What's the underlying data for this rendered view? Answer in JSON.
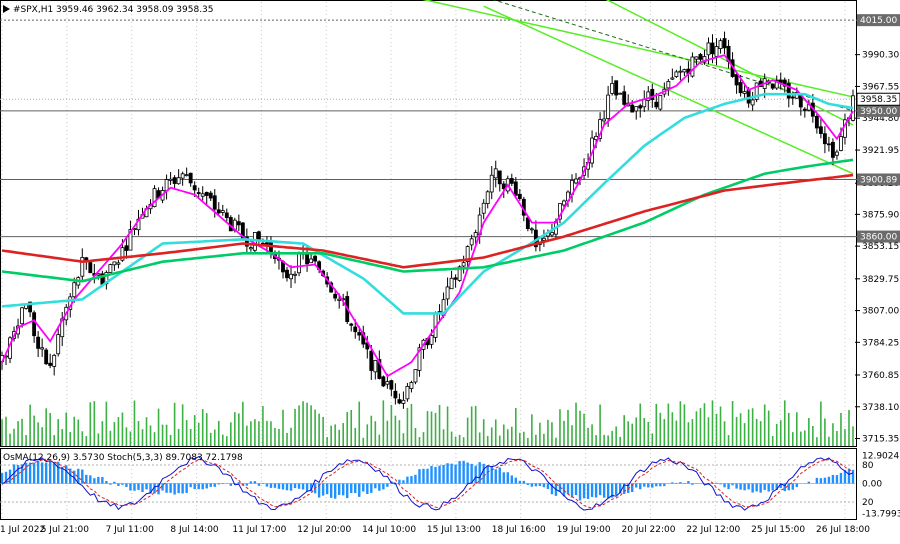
{
  "chart_data": [
    {
      "type": "candlestick",
      "title": "#SPX,H1  3959.46 3962.34 3958.09 3958.35",
      "x_ticks": [
        "1 Jul 2022",
        "5 Jul 21:00",
        "7 Jul 11:00",
        "8 Jul 14:00",
        "11 Jul 17:00",
        "12 Jul 20:00",
        "14 Jul 10:00",
        "15 Jul 13:00",
        "18 Jul 16:00",
        "19 Jul 19:00",
        "20 Jul 22:00",
        "22 Jul 12:00",
        "25 Jul 15:00",
        "26 Jul 18:00"
      ],
      "y_ticks": [
        3990.3,
        3967.55,
        3944.8,
        3921.95,
        3898.2,
        3875.9,
        3853.15,
        3829.75,
        3807.0,
        3784.25,
        3760.85,
        3738.1,
        3715.35
      ],
      "ylim": [
        3710,
        4028
      ],
      "levels": [
        {
          "label": "4015.00",
          "value": 4015.0,
          "style": "dotted"
        },
        {
          "label": "3950.00",
          "value": 3950.0,
          "style": "solid"
        },
        {
          "label": "3900.89",
          "value": 3900.89,
          "style": "solid"
        },
        {
          "label": "3860.00",
          "value": 3860.0,
          "style": "solid"
        }
      ],
      "current_price": {
        "label": "3958.35",
        "value": 3958.35
      },
      "ohlc_keypoints": [
        [
          0,
          3770
        ],
        [
          3,
          3795
        ],
        [
          6,
          3815
        ],
        [
          9,
          3780
        ],
        [
          12,
          3765
        ],
        [
          15,
          3800
        ],
        [
          20,
          3840
        ],
        [
          25,
          3830
        ],
        [
          30,
          3850
        ],
        [
          35,
          3880
        ],
        [
          40,
          3895
        ],
        [
          45,
          3905
        ],
        [
          50,
          3890
        ],
        [
          55,
          3875
        ],
        [
          60,
          3860
        ],
        [
          65,
          3855
        ],
        [
          68,
          3850
        ],
        [
          70,
          3830
        ],
        [
          75,
          3845
        ],
        [
          80,
          3835
        ],
        [
          85,
          3810
        ],
        [
          88,
          3790
        ],
        [
          92,
          3770
        ],
        [
          96,
          3752
        ],
        [
          100,
          3745
        ],
        [
          104,
          3775
        ],
        [
          108,
          3800
        ],
        [
          112,
          3825
        ],
        [
          116,
          3850
        ],
        [
          119,
          3875
        ],
        [
          122,
          3905
        ],
        [
          125,
          3900
        ],
        [
          128,
          3895
        ],
        [
          131,
          3870
        ],
        [
          133,
          3850
        ],
        [
          136,
          3860
        ],
        [
          140,
          3885
        ],
        [
          145,
          3910
        ],
        [
          148,
          3935
        ],
        [
          152,
          3965
        ],
        [
          156,
          3950
        ],
        [
          160,
          3960
        ],
        [
          164,
          3958
        ],
        [
          168,
          3975
        ],
        [
          172,
          3985
        ],
        [
          176,
          3995
        ],
        [
          180,
          3998
        ],
        [
          183,
          3970
        ],
        [
          186,
          3960
        ],
        [
          190,
          3975
        ],
        [
          194,
          3965
        ],
        [
          198,
          3960
        ],
        [
          202,
          3950
        ],
        [
          206,
          3925
        ],
        [
          208,
          3920
        ],
        [
          210,
          3940
        ],
        [
          212,
          3958
        ]
      ],
      "ma_series": [
        {
          "color": "#ff00ff",
          "period": "short",
          "keypoints": [
            [
              0,
              3770
            ],
            [
              4,
              3795
            ],
            [
              8,
              3800
            ],
            [
              12,
              3785
            ],
            [
              18,
              3815
            ],
            [
              24,
              3835
            ],
            [
              30,
              3855
            ],
            [
              36,
              3880
            ],
            [
              42,
              3895
            ],
            [
              48,
              3890
            ],
            [
              54,
              3875
            ],
            [
              60,
              3860
            ],
            [
              66,
              3850
            ],
            [
              72,
              3838
            ],
            [
              78,
              3840
            ],
            [
              84,
              3818
            ],
            [
              90,
              3790
            ],
            [
              96,
              3760
            ],
            [
              102,
              3770
            ],
            [
              108,
              3795
            ],
            [
              114,
              3820
            ],
            [
              120,
              3870
            ],
            [
              126,
              3897
            ],
            [
              132,
              3870
            ],
            [
              138,
              3870
            ],
            [
              144,
              3900
            ],
            [
              150,
              3940
            ],
            [
              156,
              3955
            ],
            [
              162,
              3960
            ],
            [
              168,
              3968
            ],
            [
              174,
              3985
            ],
            [
              180,
              3990
            ],
            [
              186,
              3965
            ],
            [
              192,
              3972
            ],
            [
              198,
              3965
            ],
            [
              204,
              3945
            ],
            [
              208,
              3930
            ],
            [
              212,
              3950
            ]
          ]
        },
        {
          "color": "#33dddd",
          "period": "medium",
          "keypoints": [
            [
              0,
              3810
            ],
            [
              20,
              3815
            ],
            [
              40,
              3855
            ],
            [
              60,
              3858
            ],
            [
              75,
              3855
            ],
            [
              90,
              3830
            ],
            [
              100,
              3805
            ],
            [
              110,
              3805
            ],
            [
              120,
              3835
            ],
            [
              130,
              3852
            ],
            [
              140,
              3870
            ],
            [
              150,
              3898
            ],
            [
              160,
              3925
            ],
            [
              170,
              3945
            ],
            [
              180,
              3955
            ],
            [
              190,
              3962
            ],
            [
              200,
              3962
            ],
            [
              206,
              3955
            ],
            [
              212,
              3952
            ]
          ]
        },
        {
          "color": "#00cc66",
          "period": "long",
          "keypoints": [
            [
              0,
              3835
            ],
            [
              20,
              3828
            ],
            [
              40,
              3842
            ],
            [
              60,
              3848
            ],
            [
              80,
              3848
            ],
            [
              100,
              3835
            ],
            [
              120,
              3838
            ],
            [
              140,
              3850
            ],
            [
              160,
              3870
            ],
            [
              175,
              3890
            ],
            [
              190,
              3905
            ],
            [
              200,
              3910
            ],
            [
              212,
              3915
            ]
          ]
        },
        {
          "color": "#dd2222",
          "period": "longest",
          "keypoints": [
            [
              0,
              3850
            ],
            [
              20,
              3842
            ],
            [
              40,
              3848
            ],
            [
              60,
              3855
            ],
            [
              80,
              3850
            ],
            [
              100,
              3838
            ],
            [
              120,
              3845
            ],
            [
              140,
              3860
            ],
            [
              160,
              3878
            ],
            [
              180,
              3893
            ],
            [
              200,
              3900
            ],
            [
              212,
              3904
            ]
          ]
        }
      ],
      "channel_lines": [
        {
          "color": "#55ee22",
          "from": [
            97,
            4035
          ],
          "to": [
            212,
            3960
          ]
        },
        {
          "color": "#55ee22",
          "from": [
            147,
            4035
          ],
          "to": [
            212,
            3940
          ]
        },
        {
          "color": "#55ee22",
          "from": [
            120,
            4025
          ],
          "to": [
            212,
            3905
          ]
        },
        {
          "color": "#226622",
          "from": [
            122,
            4030
          ],
          "to": [
            212,
            3950
          ],
          "style": "dashed"
        }
      ]
    },
    {
      "type": "oscillator",
      "title": "OsMA(12,26,9) 3.5730  Stoch(5,3,3) 89.7083 72.1798",
      "y_ticks": [
        12.9024,
        0.0,
        -13.7993
      ],
      "y_extra_labels": [
        "80",
        "20"
      ],
      "ylim": [
        -16,
        16
      ],
      "osma_color": "#1e90ff",
      "stoch_main_color": "#1010cc",
      "stoch_signal_color": "#dd2222"
    }
  ]
}
